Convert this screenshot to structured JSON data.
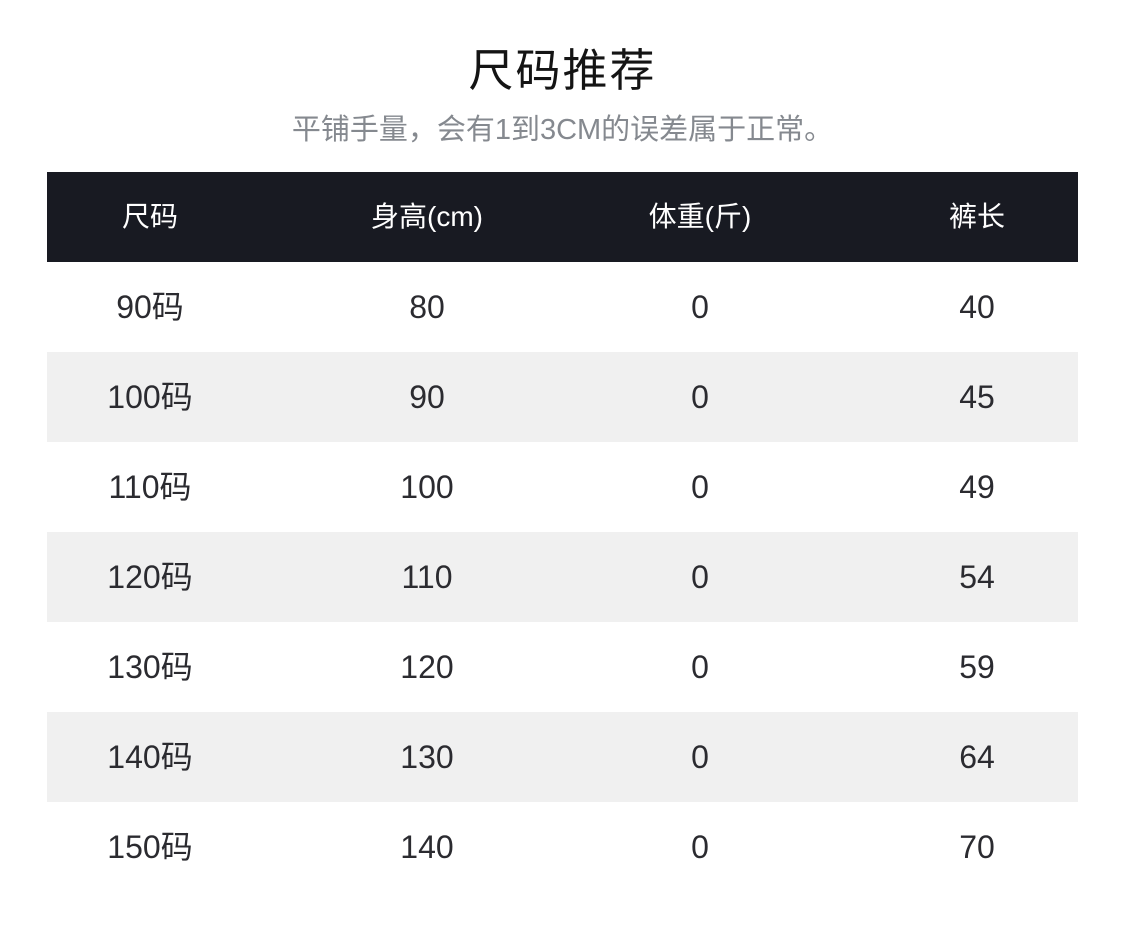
{
  "chart_data": {
    "type": "table",
    "title": "尺码推荐",
    "subtitle": "平铺手量，会有1到3CM的误差属于正常。",
    "columns": [
      "尺码",
      "身高(cm)",
      "体重(斤)",
      "裤长"
    ],
    "rows": [
      [
        "90码",
        "80",
        "0",
        "40"
      ],
      [
        "100码",
        "90",
        "0",
        "45"
      ],
      [
        "110码",
        "100",
        "0",
        "49"
      ],
      [
        "120码",
        "110",
        "0",
        "54"
      ],
      [
        "130码",
        "120",
        "0",
        "59"
      ],
      [
        "140码",
        "130",
        "0",
        "64"
      ],
      [
        "150码",
        "140",
        "0",
        "70"
      ]
    ],
    "layout": {
      "header_bg": "#181a22",
      "header_text_color": "#ffffff",
      "stripe_bg": "#f0f0f0",
      "row_text_color": "#2b2b30",
      "title_color": "#141414",
      "subtitle_color": "#85898f",
      "striped_rows": "even rows shaded"
    }
  }
}
